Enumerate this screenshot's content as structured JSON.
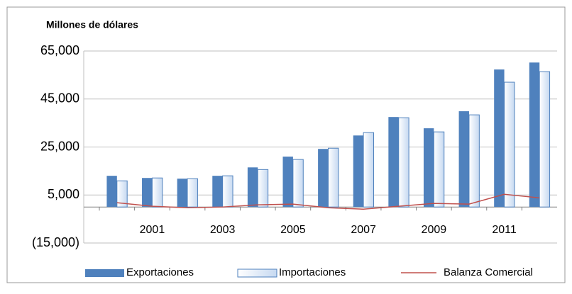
{
  "chart_data": {
    "type": "bar",
    "title": "Millones de dólares",
    "categories": [
      null,
      "2001",
      null,
      "2003",
      null,
      "2005",
      null,
      "2007",
      null,
      "2009",
      null,
      "2011",
      null
    ],
    "series": [
      {
        "name": "Exportaciones",
        "type": "bar",
        "color": "#4f81bd",
        "values": [
          13000,
          12100,
          11800,
          13000,
          16500,
          21000,
          24200,
          29800,
          37500,
          32800,
          39900,
          57300,
          60200
        ]
      },
      {
        "name": "Importaciones",
        "type": "bar",
        "color": "#c6d9f1",
        "values": [
          10900,
          12100,
          11800,
          13000,
          15600,
          19800,
          24500,
          31000,
          37200,
          31300,
          38400,
          52000,
          56400
        ]
      },
      {
        "name": "Balanza Comercial",
        "type": "line",
        "color": "#c0504d",
        "values": [
          1800,
          300,
          -300,
          0,
          900,
          1200,
          -300,
          -900,
          300,
          1500,
          1200,
          5300,
          3800
        ]
      }
    ],
    "ylim": [
      -15000,
      65000
    ],
    "yticks": [
      {
        "value": -15000,
        "label": "(15,000)"
      },
      {
        "value": 5000,
        "label": "5,000"
      },
      {
        "value": 25000,
        "label": "25,000"
      },
      {
        "value": 45000,
        "label": "45,000"
      },
      {
        "value": 65000,
        "label": "65,000"
      }
    ],
    "grid": true,
    "legend": "bottom"
  }
}
